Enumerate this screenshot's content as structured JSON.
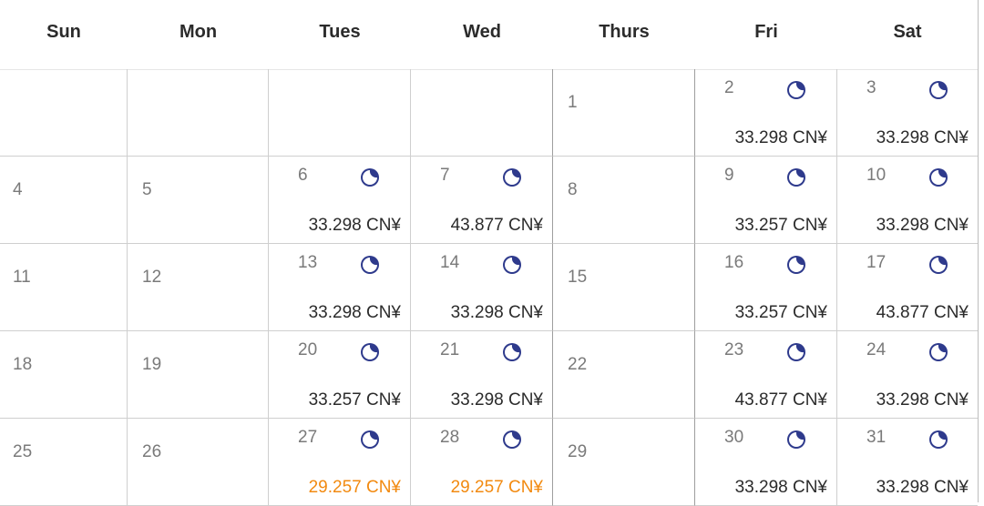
{
  "weekdays": [
    "Sun",
    "Mon",
    "Tues",
    "Wed",
    "Thurs",
    "Fri",
    "Sat"
  ],
  "weeks": [
    [
      {
        "day": ""
      },
      {
        "day": ""
      },
      {
        "day": ""
      },
      {
        "day": ""
      },
      {
        "day": "1"
      },
      {
        "day": "2",
        "price": "33.298 CN¥",
        "icon": "moon-icon"
      },
      {
        "day": "3",
        "price": "33.298 CN¥",
        "icon": "moon-icon"
      }
    ],
    [
      {
        "day": "4"
      },
      {
        "day": "5"
      },
      {
        "day": "6",
        "price": "33.298 CN¥",
        "icon": "moon-icon"
      },
      {
        "day": "7",
        "price": "43.877 CN¥",
        "icon": "moon-icon"
      },
      {
        "day": "8"
      },
      {
        "day": "9",
        "price": "33.257 CN¥",
        "icon": "moon-icon"
      },
      {
        "day": "10",
        "price": "33.298 CN¥",
        "icon": "moon-icon"
      }
    ],
    [
      {
        "day": "11"
      },
      {
        "day": "12"
      },
      {
        "day": "13",
        "price": "33.298 CN¥",
        "icon": "moon-icon"
      },
      {
        "day": "14",
        "price": "33.298 CN¥",
        "icon": "moon-icon"
      },
      {
        "day": "15"
      },
      {
        "day": "16",
        "price": "33.257 CN¥",
        "icon": "moon-icon"
      },
      {
        "day": "17",
        "price": "43.877 CN¥",
        "icon": "moon-icon"
      }
    ],
    [
      {
        "day": "18"
      },
      {
        "day": "19"
      },
      {
        "day": "20",
        "price": "33.257 CN¥",
        "icon": "moon-icon"
      },
      {
        "day": "21",
        "price": "33.298 CN¥",
        "icon": "moon-icon"
      },
      {
        "day": "22"
      },
      {
        "day": "23",
        "price": "43.877 CN¥",
        "icon": "moon-icon"
      },
      {
        "day": "24",
        "price": "33.298 CN¥",
        "icon": "moon-icon"
      }
    ],
    [
      {
        "day": "25"
      },
      {
        "day": "26"
      },
      {
        "day": "27",
        "price": "29.257 CN¥",
        "icon": "moon-icon",
        "highlight": true
      },
      {
        "day": "28",
        "price": "29.257 CN¥",
        "icon": "moon-icon",
        "highlight": true
      },
      {
        "day": "29"
      },
      {
        "day": "30",
        "price": "33.298 CN¥",
        "icon": "moon-icon"
      },
      {
        "day": "31",
        "price": "33.298 CN¥",
        "icon": "moon-icon"
      }
    ]
  ],
  "colors": {
    "price_default": "#2b2b2b",
    "price_lowest": "#f28a10",
    "moon_icon": "#2e3a8c",
    "day_number": "#7a7a7a"
  }
}
